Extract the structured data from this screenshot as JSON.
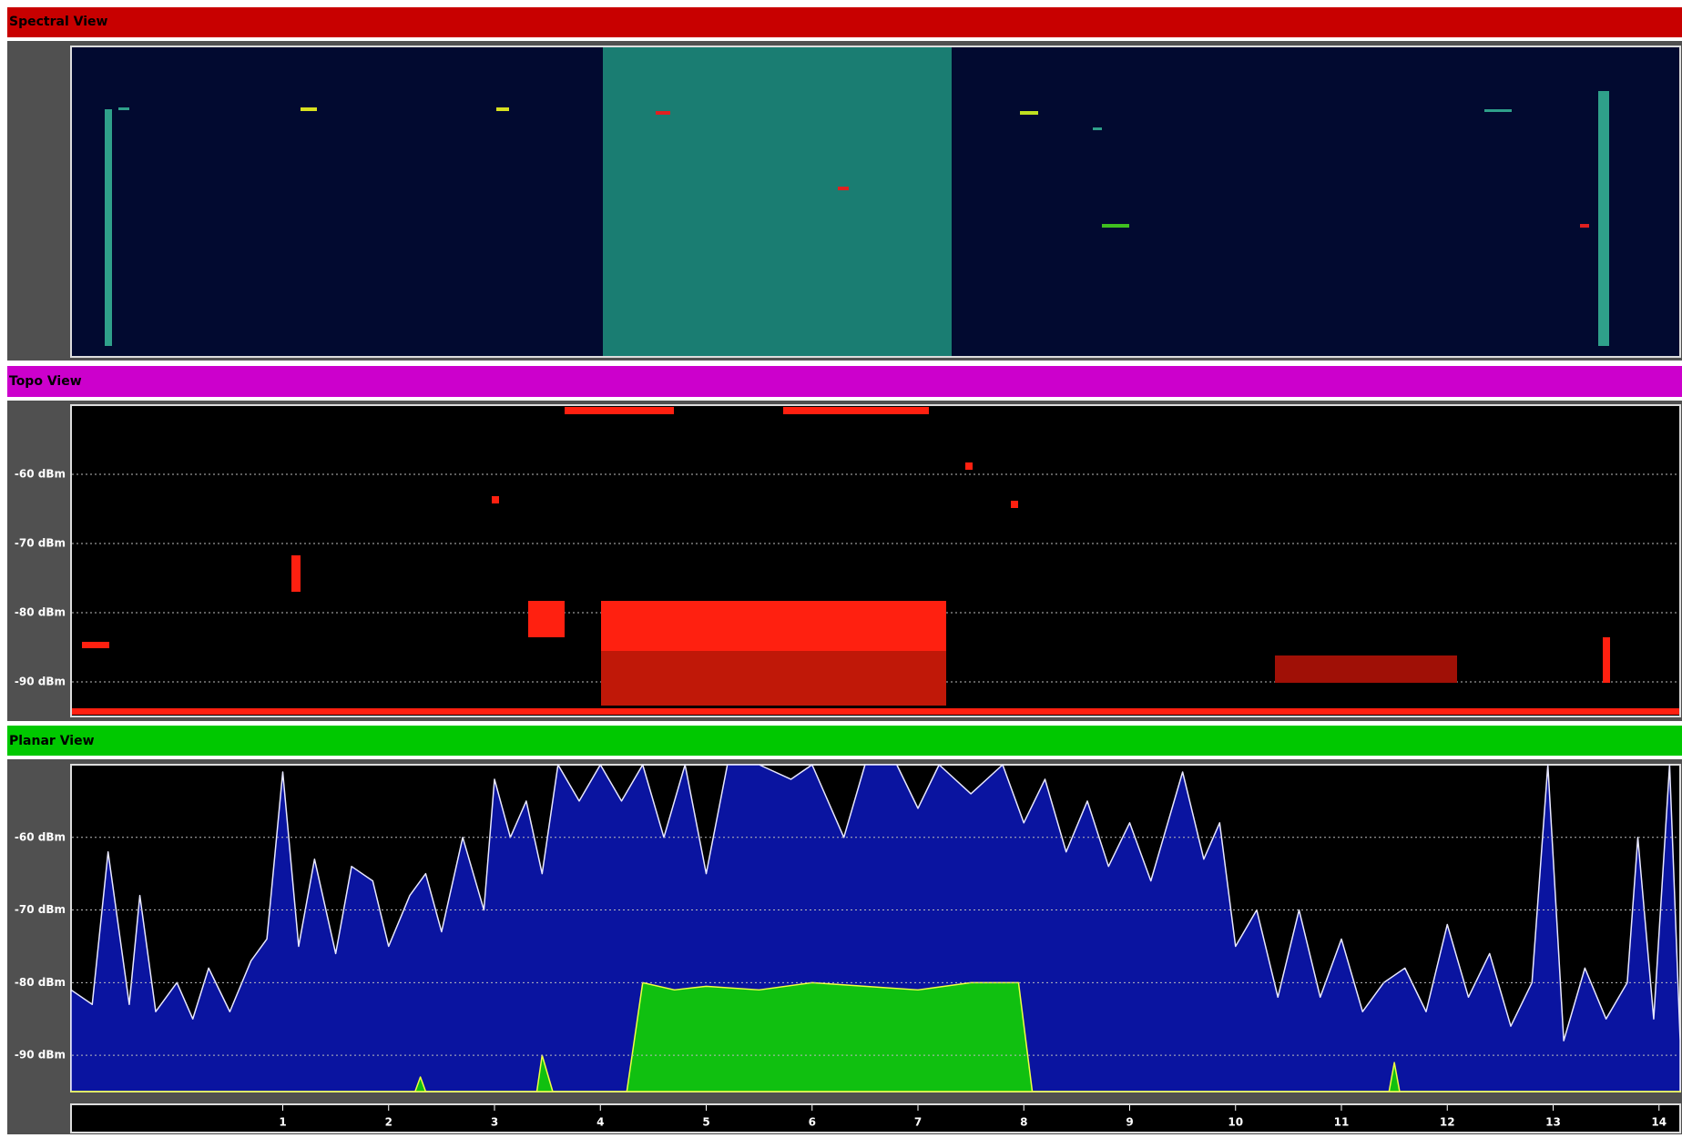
{
  "spectral_view": {
    "title": "Spectral View"
  },
  "topo_view": {
    "title": "Topo View",
    "ylim": [
      -95,
      -50
    ],
    "yticks": [
      {
        "value": -60,
        "label": "-60 dBm"
      },
      {
        "value": -70,
        "label": "-70 dBm"
      },
      {
        "value": -80,
        "label": "-80 dBm"
      },
      {
        "value": -90,
        "label": "-90 dBm"
      }
    ]
  },
  "chart_data": {
    "type": "area",
    "title": "Planar View",
    "grid": true,
    "xlim": [
      -1,
      14.2
    ],
    "ylim": [
      -95,
      -50
    ],
    "xticks": [
      1,
      2,
      3,
      4,
      5,
      6,
      7,
      8,
      9,
      10,
      11,
      12,
      13,
      14
    ],
    "yticks": [
      {
        "value": -60,
        "label": "-60 dBm"
      },
      {
        "value": -70,
        "label": "-70 dBm"
      },
      {
        "value": -80,
        "label": "-80 dBm"
      },
      {
        "value": -90,
        "label": "-90 dBm"
      }
    ],
    "series": [
      {
        "color": "#0a14a0",
        "line_color": "#e8e8ff",
        "x": [
          -1,
          -0.8,
          -0.65,
          -0.45,
          -0.35,
          -0.2,
          0,
          0.15,
          0.3,
          0.5,
          0.7,
          0.85,
          1.0,
          1.15,
          1.3,
          1.5,
          1.65,
          1.85,
          2.0,
          2.2,
          2.35,
          2.5,
          2.7,
          2.9,
          3.0,
          3.15,
          3.3,
          3.45,
          3.6,
          3.8,
          4.0,
          4.2,
          4.4,
          4.6,
          4.8,
          5.0,
          5.2,
          5.5,
          5.8,
          6.0,
          6.3,
          6.5,
          6.8,
          7.0,
          7.2,
          7.5,
          7.8,
          8.0,
          8.2,
          8.4,
          8.6,
          8.8,
          9.0,
          9.2,
          9.4,
          9.5,
          9.7,
          9.85,
          10.0,
          10.2,
          10.4,
          10.6,
          10.8,
          11.0,
          11.2,
          11.4,
          11.6,
          11.8,
          12.0,
          12.2,
          12.4,
          12.6,
          12.8,
          12.95,
          13.1,
          13.3,
          13.5,
          13.7,
          13.8,
          13.95,
          14.1,
          14.2
        ],
        "values": [
          -81,
          -83,
          -62,
          -83,
          -68,
          -84,
          -80,
          -85,
          -78,
          -84,
          -77,
          -74,
          -51,
          -75,
          -63,
          -76,
          -64,
          -66,
          -75,
          -68,
          -65,
          -73,
          -60,
          -70,
          -52,
          -60,
          -55,
          -65,
          -50,
          -55,
          -50,
          -55,
          -50,
          -60,
          -50,
          -65,
          -50,
          -50,
          -52,
          -50,
          -60,
          -50,
          -50,
          -56,
          -50,
          -54,
          -50,
          -58,
          -52,
          -62,
          -55,
          -64,
          -58,
          -66,
          -56,
          -51,
          -63,
          -58,
          -75,
          -70,
          -82,
          -70,
          -82,
          -74,
          -84,
          -80,
          -78,
          -84,
          -72,
          -82,
          -76,
          -86,
          -80,
          -50,
          -88,
          -78,
          -85,
          -80,
          -60,
          -85,
          -50,
          -88
        ]
      },
      {
        "color": "#10c010",
        "line_color": "#f0ff40",
        "x": [
          -1,
          2.25,
          2.3,
          2.35,
          3.4,
          3.45,
          3.55,
          4.25,
          4.4,
          4.7,
          5.0,
          5.5,
          6.0,
          6.5,
          7.0,
          7.5,
          7.95,
          8.08,
          11.45,
          11.5,
          11.55,
          14.2
        ],
        "values": [
          -95,
          -95,
          -93,
          -95,
          -95,
          -90,
          -95,
          -95,
          -80,
          -81,
          -80.5,
          -81,
          -80,
          -80.5,
          -81,
          -80,
          -80,
          -95,
          -95,
          -91,
          -95,
          -95
        ]
      }
    ]
  }
}
